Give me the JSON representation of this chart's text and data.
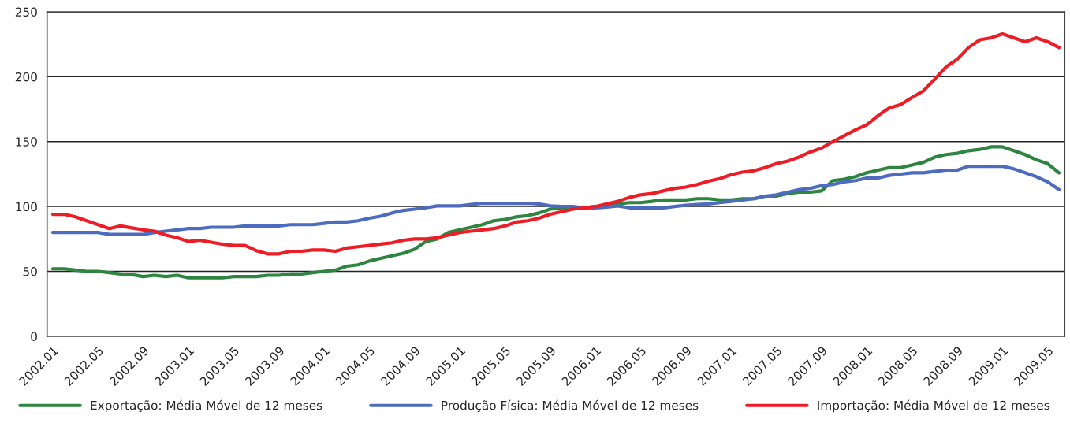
{
  "chart_data": {
    "type": "line",
    "categories": [
      "2002.01",
      null,
      null,
      null,
      "2002.05",
      null,
      null,
      null,
      "2002.09",
      null,
      null,
      null,
      "2003.01",
      null,
      null,
      null,
      "2003.05",
      null,
      null,
      null,
      "2003.09",
      null,
      null,
      null,
      "2004.01",
      null,
      null,
      null,
      "2004.05",
      null,
      null,
      null,
      "2004.09",
      null,
      null,
      null,
      "2005.01",
      null,
      null,
      null,
      "2005.05",
      null,
      null,
      null,
      "2005.09",
      null,
      null,
      null,
      "2006.01",
      null,
      null,
      null,
      "2006.05",
      null,
      null,
      null,
      "2006.09",
      null,
      null,
      null,
      "2007.01",
      null,
      null,
      null,
      "2007.05",
      null,
      null,
      null,
      "2007.09",
      null,
      null,
      null,
      "2008.01",
      null,
      null,
      null,
      "2008.05",
      null,
      null,
      null,
      "2008.09",
      null,
      null,
      null,
      "2009.01",
      null,
      null,
      null,
      "2009.05",
      null
    ],
    "series": [
      {
        "name": "Exportação: Média Móvel de 12 meses",
        "color": "#2e8540",
        "values": [
          52,
          52,
          51,
          50,
          50,
          49,
          48,
          47.5,
          46,
          47,
          46,
          47,
          45,
          45,
          45,
          45,
          46,
          46,
          46,
          47,
          47,
          48,
          48,
          49,
          50,
          51,
          54,
          55,
          58,
          60,
          62,
          64,
          67,
          73,
          75,
          80,
          82,
          84,
          86,
          89,
          90,
          92,
          93,
          95,
          98,
          99,
          99,
          99,
          100,
          100,
          102,
          103,
          103,
          104,
          105,
          105,
          105,
          106,
          106,
          105,
          105,
          106,
          106,
          108,
          108,
          110,
          111,
          111,
          112,
          120,
          121,
          123,
          126,
          128,
          130,
          130,
          132,
          134,
          138,
          140,
          141,
          143,
          144,
          146,
          146,
          143,
          140,
          136,
          133,
          126
        ]
      },
      {
        "name": "Produção Física: Média Móvel de 12 meses",
        "color": "#4e6cbf",
        "values": [
          80,
          80,
          80,
          80,
          80,
          78.5,
          78.5,
          78.5,
          78.5,
          80,
          81,
          82,
          83,
          83,
          84,
          84,
          84,
          85,
          85,
          85,
          85,
          86,
          86,
          86,
          87,
          88,
          88,
          89,
          91,
          92.5,
          95,
          97,
          98,
          99,
          100.5,
          100.5,
          100.5,
          101.5,
          102.5,
          102.5,
          102.5,
          102.5,
          102.5,
          102,
          100.5,
          100,
          100,
          99,
          99,
          99.5,
          100.5,
          99,
          99,
          99,
          99,
          100,
          101,
          101.5,
          102,
          103,
          104,
          105,
          106,
          108,
          109,
          111,
          113,
          114,
          116,
          117,
          119,
          120,
          122,
          122,
          124,
          125,
          126,
          126,
          127,
          128,
          128,
          131,
          131,
          131,
          131,
          129,
          126,
          123,
          119,
          113
        ]
      },
      {
        "name": "Importação: Média Móvel de 12 meses",
        "color": "#ee1c25",
        "values": [
          94,
          94,
          92,
          89,
          86,
          83,
          85,
          83.5,
          82,
          81,
          78,
          76,
          73,
          74,
          72.5,
          71,
          70,
          70,
          66,
          63.5,
          63.5,
          65.5,
          65.5,
          66.5,
          66.5,
          65.5,
          68,
          69,
          70,
          71,
          72,
          74,
          75,
          75,
          76,
          78,
          80,
          81,
          82,
          83,
          85,
          88,
          89,
          91,
          94,
          96,
          98,
          99,
          100,
          102,
          104,
          107,
          109,
          110,
          112,
          114,
          115,
          117,
          119.5,
          121.5,
          124.5,
          126.5,
          127.5,
          130,
          133,
          135,
          138,
          142,
          145,
          150,
          154.5,
          159,
          163,
          170,
          176,
          178.5,
          184,
          189,
          198,
          207.5,
          213.5,
          222.5,
          228.5,
          230,
          233,
          230,
          227,
          230,
          227,
          222.5
        ]
      }
    ],
    "ylim": [
      0,
      250
    ],
    "yticks": [
      0,
      50,
      100,
      150,
      200,
      250
    ],
    "grid": "y",
    "legend": "bottom",
    "marker": "none",
    "line_style": "solid"
  }
}
